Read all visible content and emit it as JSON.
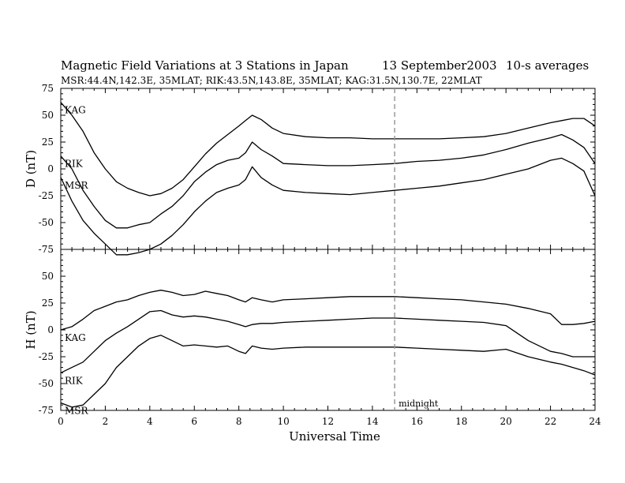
{
  "chart_data": {
    "type": "line",
    "title": "Magnetic Field Variations at 3 Stations in Japan",
    "date": "13 September2003",
    "averaging": "10-s averages",
    "subtitle": "MSR:44.4N,142.3E, 35MLAT;   RIK:43.5N,143.8E, 35MLAT;   KAG:31.5N,130.7E, 22MLAT",
    "xlabel": "Universal Time",
    "xlim": [
      0,
      24
    ],
    "xticks": [
      0,
      2,
      4,
      6,
      8,
      10,
      12,
      14,
      16,
      18,
      20,
      22,
      24
    ],
    "midnight_marker": {
      "x": 15,
      "label": "midnight"
    },
    "x": [
      0,
      0.5,
      1,
      1.5,
      2,
      2.5,
      3,
      3.5,
      4,
      4.5,
      5,
      5.5,
      6,
      6.5,
      7,
      7.5,
      8,
      8.3,
      8.6,
      9,
      9.5,
      10,
      11,
      12,
      13,
      14,
      15,
      16,
      17,
      18,
      19,
      20,
      21,
      22,
      22.5,
      23,
      23.5,
      24
    ],
    "panels": [
      {
        "ylabel": "D (nT)",
        "ylim": [
          -75,
          75
        ],
        "yticks": [
          75,
          50,
          25,
          0,
          -25,
          -50,
          -75
        ],
        "series": [
          {
            "name": "KAG",
            "values": [
              62,
              50,
              35,
              15,
              0,
              -12,
              -18,
              -22,
              -25,
              -23,
              -18,
              -10,
              2,
              14,
              24,
              32,
              40,
              45,
              50,
              46,
              38,
              33,
              30,
              29,
              29,
              28,
              28,
              28,
              28,
              29,
              30,
              33,
              38,
              43,
              45,
              47,
              47,
              40
            ]
          },
          {
            "name": "RIK",
            "values": [
              12,
              0,
              -20,
              -35,
              -48,
              -55,
              -55,
              -52,
              -50,
              -42,
              -35,
              -25,
              -12,
              -3,
              4,
              8,
              10,
              15,
              25,
              18,
              12,
              5,
              4,
              3,
              3,
              4,
              5,
              7,
              8,
              10,
              13,
              18,
              24,
              29,
              32,
              27,
              20,
              5
            ]
          },
          {
            "name": "MSR",
            "values": [
              -8,
              -30,
              -48,
              -60,
              -70,
              -80,
              -80,
              -78,
              -75,
              -70,
              -62,
              -52,
              -40,
              -30,
              -22,
              -18,
              -15,
              -10,
              2,
              -8,
              -15,
              -20,
              -22,
              -23,
              -24,
              -22,
              -20,
              -18,
              -16,
              -13,
              -10,
              -5,
              0,
              8,
              10,
              5,
              -2,
              -25
            ]
          }
        ]
      },
      {
        "ylabel": "H (nT)",
        "ylim": [
          -75,
          75
        ],
        "yticks": [
          75,
          50,
          25,
          0,
          -25,
          -50,
          -75
        ],
        "series": [
          {
            "name": "KAG",
            "values": [
              0,
              3,
              10,
              18,
              22,
              26,
              28,
              32,
              35,
              37,
              35,
              32,
              33,
              36,
              34,
              32,
              28,
              26,
              30,
              28,
              26,
              28,
              29,
              30,
              31,
              31,
              31,
              30,
              29,
              28,
              26,
              24,
              20,
              15,
              5,
              5,
              6,
              8
            ]
          },
          {
            "name": "RIK",
            "values": [
              -40,
              -35,
              -30,
              -20,
              -10,
              -3,
              3,
              10,
              17,
              18,
              14,
              12,
              13,
              12,
              10,
              8,
              5,
              3,
              5,
              6,
              6,
              7,
              8,
              9,
              10,
              11,
              11,
              10,
              9,
              8,
              7,
              4,
              -10,
              -20,
              -22,
              -25,
              -25,
              -25
            ]
          },
          {
            "name": "MSR",
            "values": [
              -68,
              -72,
              -70,
              -60,
              -50,
              -35,
              -25,
              -15,
              -8,
              -5,
              -10,
              -15,
              -14,
              -15,
              -16,
              -15,
              -20,
              -22,
              -15,
              -17,
              -18,
              -17,
              -16,
              -16,
              -16,
              -16,
              -16,
              -17,
              -18,
              -19,
              -20,
              -18,
              -25,
              -30,
              -32,
              -35,
              -38,
              -42
            ]
          }
        ]
      }
    ]
  }
}
